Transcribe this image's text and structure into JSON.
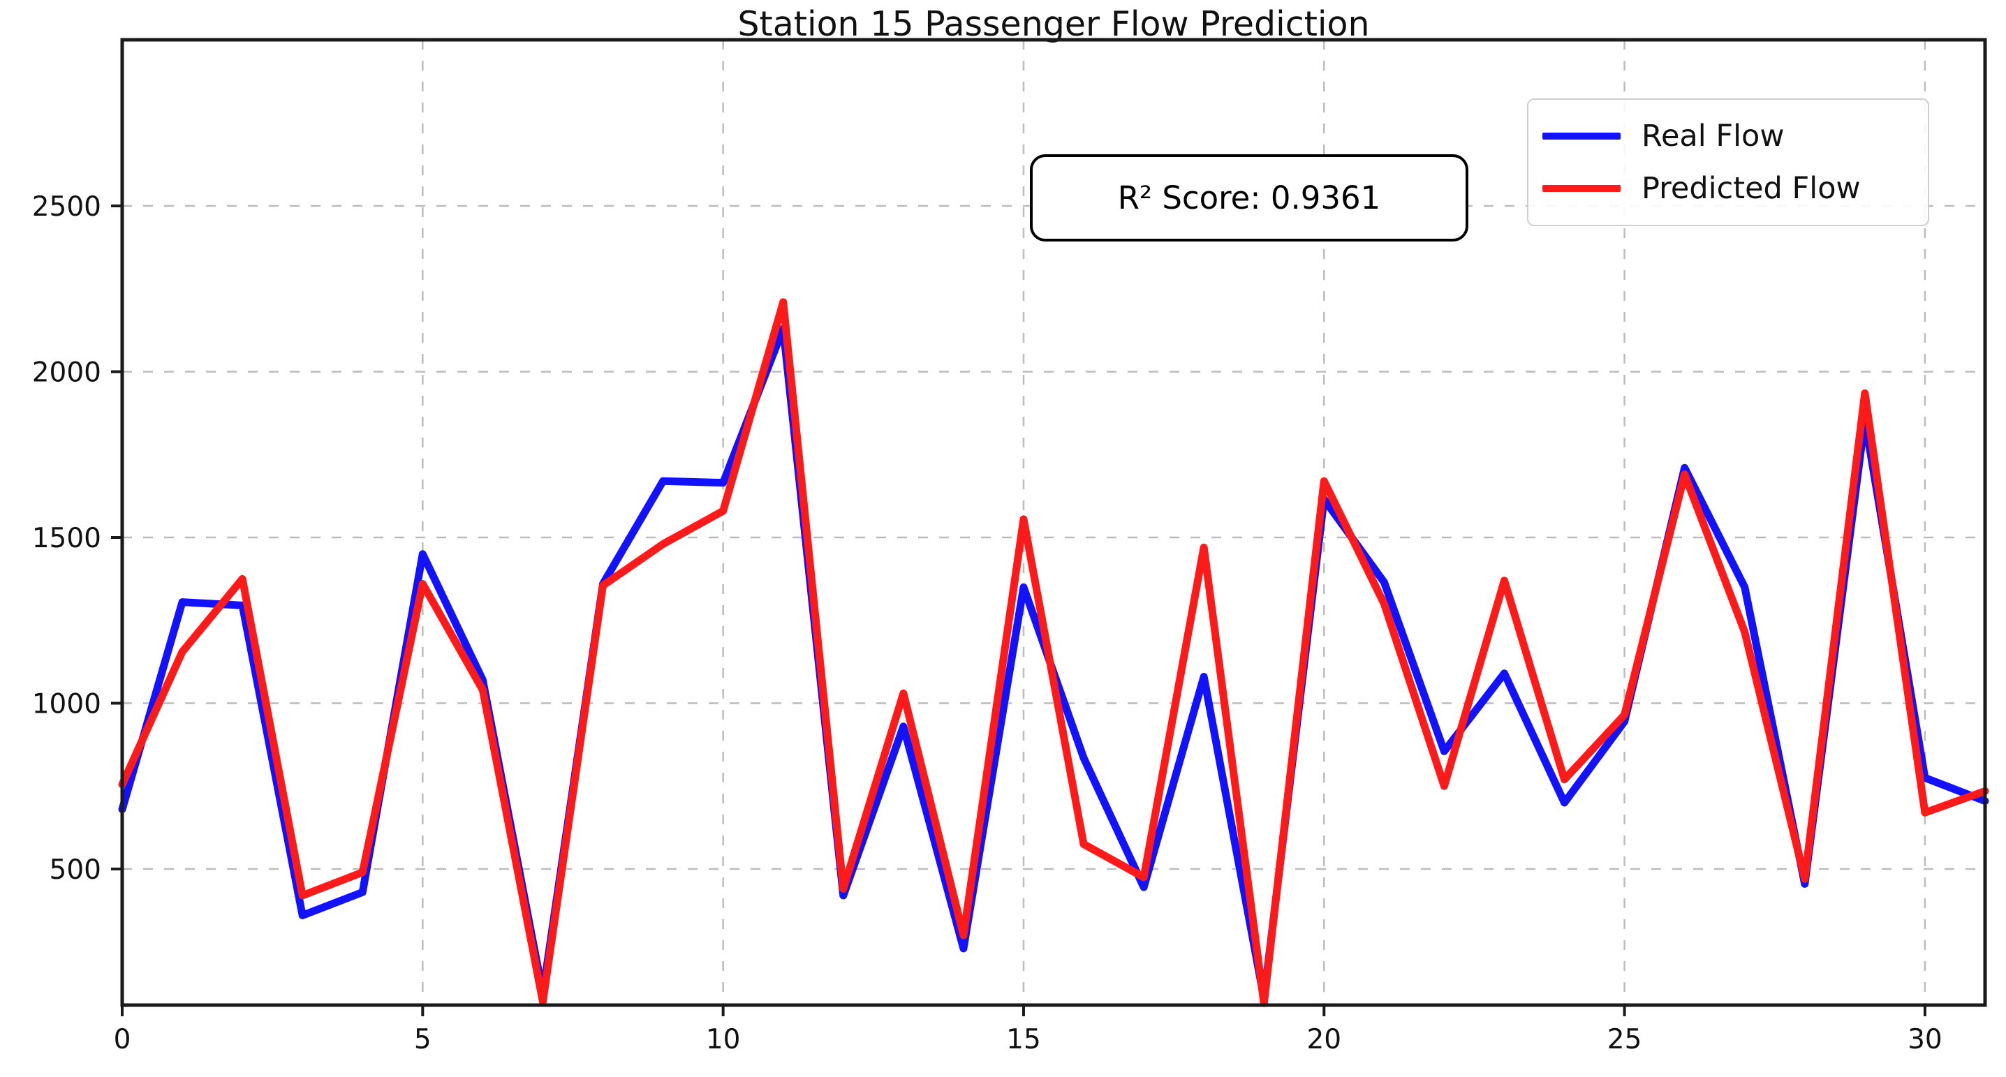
{
  "chart": {
    "title": "Station 15 Passenger Flow Prediction"
  },
  "annotation": {
    "text": "R² Score: 0.9361"
  },
  "legend": {
    "series": [
      {
        "label": "Real Flow",
        "color": "#1212ff"
      },
      {
        "label": "Predicted Flow",
        "color": "#ff1a1a"
      }
    ]
  },
  "chart_data": {
    "type": "line",
    "title": "Station 15 Passenger Flow Prediction",
    "xlabel": "",
    "ylabel": "",
    "x": [
      0,
      1,
      2,
      3,
      4,
      5,
      6,
      7,
      8,
      9,
      10,
      11,
      12,
      13,
      14,
      15,
      16,
      17,
      18,
      19,
      20,
      21,
      22,
      23,
      24,
      25,
      26,
      27,
      28,
      29,
      30,
      31
    ],
    "series": [
      {
        "name": "Real Flow",
        "color": "#1212ff",
        "values": [
          680,
          1305,
          1295,
          360,
          430,
          1450,
          1070,
          125,
          1360,
          1670,
          1665,
          2130,
          420,
          930,
          260,
          1350,
          835,
          445,
          1080,
          110,
          1615,
          1365,
          855,
          1090,
          700,
          945,
          1710,
          1350,
          455,
          1855,
          775,
          705
        ]
      },
      {
        "name": "Predicted Flow",
        "color": "#ff1a1a",
        "values": [
          755,
          1155,
          1375,
          420,
          490,
          1360,
          1040,
          100,
          1355,
          1480,
          1580,
          2210,
          440,
          1030,
          300,
          1555,
          575,
          475,
          1470,
          95,
          1670,
          1300,
          750,
          1370,
          770,
          965,
          1690,
          1215,
          470,
          1935,
          670,
          735
        ]
      }
    ],
    "xticks": [
      0,
      5,
      10,
      15,
      20,
      25,
      30
    ],
    "yticks": [
      500,
      1000,
      1500,
      2000,
      2500
    ],
    "xlim": [
      0,
      31
    ],
    "ylim": [
      90,
      3000
    ],
    "grid": true,
    "grid_style": "dashed",
    "legend_position": "upper right",
    "annotation": "R² Score: 0.9361"
  }
}
